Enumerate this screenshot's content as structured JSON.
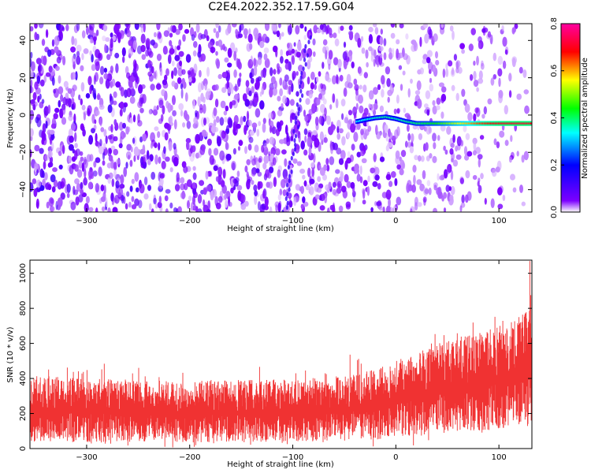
{
  "title": "C2E4.2022.352.17.59.G04",
  "chart_data": [
    {
      "type": "heatmap",
      "xlabel": "Height of straight line (km)",
      "ylabel": "Frequency (Hz)",
      "xlim": [
        -355,
        132
      ],
      "ylim": [
        -52,
        49
      ],
      "xticks": [
        -300,
        -200,
        -100,
        0,
        100
      ],
      "yticks": [
        -40,
        -20,
        0,
        20,
        40
      ],
      "colorbar": {
        "label": "Normalized spectral amplitude",
        "range": [
          0.0,
          0.8
        ],
        "ticks": [
          "0.0",
          "0.2",
          "0.4",
          "0.6",
          "0.8"
        ],
        "colormap": [
          "#ffffff",
          "#7c00ff",
          "#0000ff",
          "#00ffff",
          "#00ff00",
          "#ffff00",
          "#ff0000",
          "#ff00a0"
        ]
      },
      "signal_track": [
        {
          "x": -38,
          "y": -3.5,
          "amp": 0.32
        },
        {
          "x": -30,
          "y": -2.5,
          "amp": 0.34
        },
        {
          "x": -20,
          "y": -1.5,
          "amp": 0.36
        },
        {
          "x": -10,
          "y": -1.0,
          "amp": 0.38
        },
        {
          "x": 0,
          "y": -2.0,
          "amp": 0.36
        },
        {
          "x": 10,
          "y": -3.5,
          "amp": 0.38
        },
        {
          "x": 20,
          "y": -4.5,
          "amp": 0.4
        },
        {
          "x": 40,
          "y": -4.5,
          "amp": 0.45
        },
        {
          "x": 60,
          "y": -4.5,
          "amp": 0.55
        },
        {
          "x": 80,
          "y": -4.5,
          "amp": 0.65
        },
        {
          "x": 100,
          "y": -4.5,
          "amp": 0.7
        },
        {
          "x": 120,
          "y": -4.5,
          "amp": 0.72
        },
        {
          "x": 132,
          "y": -4.5,
          "amp": 0.7
        }
      ]
    },
    {
      "type": "area",
      "xlabel": "Height of straight line (km)",
      "ylabel": "SNR (10 * v/v)",
      "xlim": [
        -355,
        132
      ],
      "ylim": [
        0,
        1075
      ],
      "xticks": [
        -300,
        -200,
        -100,
        0,
        100
      ],
      "yticks": [
        0,
        200,
        400,
        600,
        800,
        1000
      ],
      "color": "#f03232",
      "envelope": [
        {
          "x": -355,
          "low": 40,
          "high": 420
        },
        {
          "x": -300,
          "low": 35,
          "high": 400
        },
        {
          "x": -200,
          "low": 35,
          "high": 390
        },
        {
          "x": -100,
          "low": 40,
          "high": 400
        },
        {
          "x": -50,
          "low": 45,
          "high": 420
        },
        {
          "x": -20,
          "low": 50,
          "high": 450
        },
        {
          "x": 0,
          "low": 60,
          "high": 500
        },
        {
          "x": 20,
          "low": 70,
          "high": 560
        },
        {
          "x": 40,
          "low": 80,
          "high": 600
        },
        {
          "x": 60,
          "low": 90,
          "high": 630
        },
        {
          "x": 80,
          "low": 100,
          "high": 660
        },
        {
          "x": 100,
          "low": 110,
          "high": 700
        },
        {
          "x": 120,
          "low": 120,
          "high": 760
        },
        {
          "x": 132,
          "low": 130,
          "high": 800
        }
      ]
    }
  ]
}
